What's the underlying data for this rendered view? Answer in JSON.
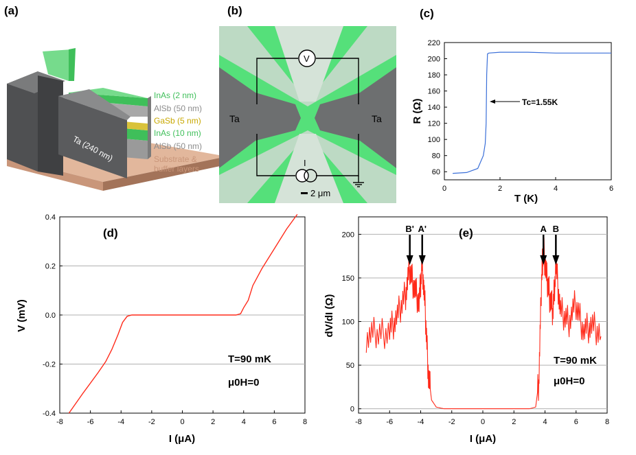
{
  "panel_labels": {
    "a": "(a)",
    "b": "(b)",
    "c": "(c)",
    "d": "(d)",
    "e": "(e)"
  },
  "colors": {
    "inas": "#5fd07a",
    "alsb": "#b8b8b8",
    "gasb": "#d9c23a",
    "substrate": "#c9967a",
    "ta": "#6e6f70",
    "trace_blue": "#3a6fd8",
    "trace_red": "#ff2a1a",
    "grid": "#b0b0b0"
  },
  "panel_a": {
    "layers": [
      {
        "name": "InAs (2 nm)",
        "color": "#3fbf5a"
      },
      {
        "name": "AlSb (50 nm)",
        "color": "#8c8c8c"
      },
      {
        "name": "GaSb (5 nm)",
        "color": "#c8a800"
      },
      {
        "name": "InAs (10 nm)",
        "color": "#3fbf5a"
      },
      {
        "name": "AlSb (50 nm)",
        "color": "#8c8c8c"
      },
      {
        "name": "Substrate &",
        "color": "#c9967a"
      },
      {
        "name": "buffer layers",
        "color": "#c9967a"
      }
    ],
    "ta_label": "Ta (240 nm)"
  },
  "panel_b": {
    "left_label": "Ta",
    "right_label": "Ta",
    "voltmeter": "V",
    "current": "I",
    "scale_bar": "2 μm"
  },
  "chart_data": [
    {
      "id": "c",
      "type": "line",
      "title": "",
      "xlabel": "T (K)",
      "ylabel": "R (Ω)",
      "xlim": [
        0,
        6
      ],
      "ylim": [
        50,
        220
      ],
      "xticks": [
        0,
        2,
        4,
        6
      ],
      "yticks": [
        60,
        80,
        100,
        120,
        140,
        160,
        180,
        200,
        220
      ],
      "annotation": "Tc=1.55K",
      "series": [
        {
          "name": "R(T)",
          "x": [
            0.3,
            0.8,
            1.2,
            1.4,
            1.47,
            1.5,
            1.52,
            1.55,
            1.6,
            2,
            3,
            4,
            5,
            6
          ],
          "y": [
            58,
            59,
            64,
            80,
            95,
            120,
            180,
            206,
            207,
            208,
            208,
            207,
            207,
            207
          ]
        }
      ]
    },
    {
      "id": "d",
      "type": "line",
      "xlabel": "I (μA)",
      "ylabel": "V (mV)",
      "xlim": [
        -8,
        8
      ],
      "ylim": [
        -0.4,
        0.4
      ],
      "xticks": [
        -8,
        -6,
        -4,
        -2,
        0,
        2,
        4,
        6,
        8
      ],
      "yticks": [
        -0.4,
        -0.2,
        0.0,
        0.2,
        0.4
      ],
      "annotations": [
        "T=90 mK",
        "μ0H=0"
      ],
      "series": [
        {
          "name": "V(I)",
          "x": [
            -7.4,
            -6.5,
            -5.5,
            -5.0,
            -4.6,
            -4.2,
            -3.9,
            -3.6,
            -3.3,
            0,
            3.5,
            3.8,
            4.0,
            4.3,
            4.6,
            5.2,
            6,
            6.8,
            7.5
          ],
          "y": [
            -0.4,
            -0.32,
            -0.235,
            -0.19,
            -0.14,
            -0.08,
            -0.03,
            -0.005,
            0.0,
            0.0,
            0.0,
            0.005,
            0.03,
            0.06,
            0.12,
            0.19,
            0.27,
            0.35,
            0.41
          ]
        }
      ]
    },
    {
      "id": "e",
      "type": "line",
      "xlabel": "I (μA)",
      "ylabel": "dV/dI (Ω)",
      "xlim": [
        -8,
        8
      ],
      "ylim": [
        -5,
        220
      ],
      "xticks": [
        -8,
        -6,
        -4,
        -2,
        0,
        2,
        4,
        6,
        8
      ],
      "yticks": [
        0,
        50,
        100,
        150,
        200
      ],
      "annotations": [
        "T=90 mK",
        "μ0H=0"
      ],
      "markers": [
        {
          "label": "B'",
          "x": -4.7
        },
        {
          "label": "A'",
          "x": -3.9
        },
        {
          "label": "A",
          "x": 3.9
        },
        {
          "label": "B",
          "x": 4.7
        }
      ],
      "series": [
        {
          "name": "dV/dI",
          "x": [
            -7.5,
            -6.8,
            -6.0,
            -5.5,
            -5.0,
            -4.7,
            -4.4,
            -4.1,
            -3.9,
            -3.7,
            -3.5,
            -3.3,
            -3.0,
            -2.5,
            -2.0,
            0,
            2.0,
            3.0,
            3.4,
            3.6,
            3.8,
            3.9,
            4.1,
            4.3,
            4.5,
            4.7,
            5.0,
            5.5,
            6.0,
            6.5,
            7.0,
            7.6
          ],
          "y": [
            84,
            86,
            90,
            105,
            130,
            160,
            140,
            120,
            168,
            110,
            40,
            10,
            2,
            0,
            0,
            0,
            0,
            0,
            2,
            30,
            160,
            185,
            150,
            130,
            110,
            165,
            110,
            100,
            120,
            90,
            95,
            83
          ]
        }
      ]
    }
  ]
}
